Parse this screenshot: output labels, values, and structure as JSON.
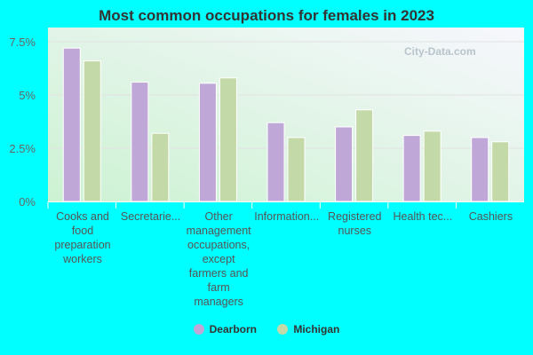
{
  "chart_data": {
    "type": "bar",
    "title": "Most common occupations for females in 2023",
    "categories": [
      "Cooks and food preparation workers",
      "Secretarie...",
      "Other management occupations, except farmers and farm managers",
      "Information...",
      "Registered nurses",
      "Health tec...",
      "Cashiers"
    ],
    "series": [
      {
        "name": "Dearborn",
        "color": "#bfa8d8",
        "values": [
          7.2,
          5.6,
          5.55,
          3.7,
          3.5,
          3.1,
          3.0
        ]
      },
      {
        "name": "Michigan",
        "color": "#c4d9a8",
        "values": [
          6.6,
          3.2,
          5.8,
          3.0,
          4.3,
          3.3,
          2.8
        ]
      }
    ],
    "ylim": [
      0,
      7.5
    ],
    "yticks": [
      "0%",
      "2.5%",
      "5%",
      "7.5%"
    ],
    "ytick_values": [
      0,
      2.5,
      5,
      7.5
    ],
    "grid": true,
    "legend": "bottom",
    "watermark": "City-Data.com"
  }
}
